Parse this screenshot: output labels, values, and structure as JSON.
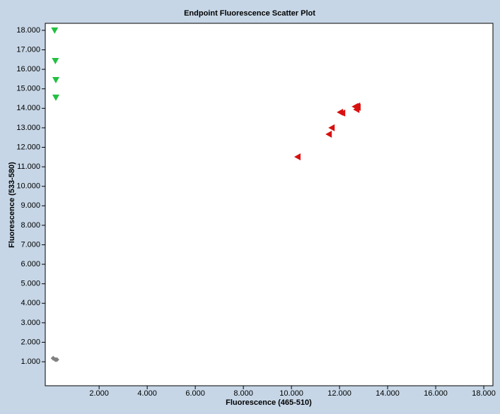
{
  "chart_data": {
    "type": "scatter",
    "title": "Endpoint Fluorescence Scatter Plot",
    "x_label": "Fluorescence (465-510)",
    "y_label": "Fluorescence (533-580)",
    "xlim": [
      -0.24,
      18.38
    ],
    "ylim": [
      -0.23,
      18.36
    ],
    "xticks": [
      {
        "value": 2,
        "label": "2.000"
      },
      {
        "value": 4,
        "label": "4.000"
      },
      {
        "value": 6,
        "label": "6.000"
      },
      {
        "value": 8,
        "label": "8.000"
      },
      {
        "value": 10,
        "label": "10.000"
      },
      {
        "value": 12,
        "label": "12.000"
      },
      {
        "value": 14,
        "label": "14.000"
      },
      {
        "value": 16,
        "label": "16.000"
      },
      {
        "value": 18,
        "label": "18.000"
      }
    ],
    "yticks": [
      {
        "value": 1,
        "label": "1.000"
      },
      {
        "value": 2,
        "label": "2.000"
      },
      {
        "value": 3,
        "label": "3.000"
      },
      {
        "value": 4,
        "label": "4.000"
      },
      {
        "value": 5,
        "label": "5.000"
      },
      {
        "value": 6,
        "label": "6.000"
      },
      {
        "value": 7,
        "label": "7.000"
      },
      {
        "value": 8,
        "label": "8.000"
      },
      {
        "value": 9,
        "label": "9.000"
      },
      {
        "value": 10,
        "label": "10.000"
      },
      {
        "value": 11,
        "label": "11.000"
      },
      {
        "value": 12,
        "label": "12.000"
      },
      {
        "value": 13,
        "label": "13.000"
      },
      {
        "value": 14,
        "label": "14.000"
      },
      {
        "value": 15,
        "label": "15.000"
      },
      {
        "value": 16,
        "label": "16.000"
      },
      {
        "value": 17,
        "label": "17.000"
      },
      {
        "value": 18,
        "label": "18.000"
      }
    ],
    "series": [
      {
        "color": "#22c040",
        "marker": "triangle-down",
        "x": [
          0.15,
          0.18,
          0.2,
          0.2
        ],
        "values": [
          18.0,
          16.44,
          15.46,
          14.56
        ]
      },
      {
        "color": "#d81010",
        "marker": "triangle-left",
        "x": [
          10.26,
          11.56,
          11.68,
          12.03,
          12.12,
          12.65,
          12.74,
          12.71,
          12.76
        ],
        "values": [
          11.51,
          12.67,
          13.0,
          13.8,
          13.76,
          14.09,
          14.12,
          13.94,
          14.05
        ]
      },
      {
        "color": "#808080",
        "marker": "diamond",
        "x": [
          0.09,
          0.18,
          0.24
        ],
        "values": [
          1.18,
          1.11,
          1.11
        ]
      }
    ]
  }
}
